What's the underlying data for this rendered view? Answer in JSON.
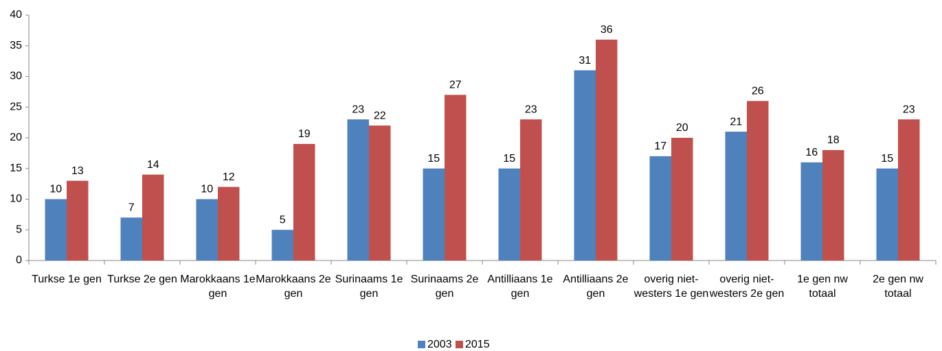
{
  "chart_data": {
    "type": "bar",
    "categories": [
      "Turkse 1e gen",
      "Turkse 2e gen",
      "Marokkaans 1e gen",
      "Marokkaans 2e gen",
      "Surinaams 1e gen",
      "Surinaams 2e gen",
      "Antilliaans 1e gen",
      "Antilliaans 2e gen",
      "overig niet-westers 1e gen",
      "overig niet-westers 2e gen",
      "1e gen nw totaal",
      "2e gen nw totaal"
    ],
    "series": [
      {
        "name": "2003",
        "color": "#4f81bd",
        "values": [
          10,
          7,
          10,
          5,
          23,
          15,
          15,
          31,
          17,
          21,
          16,
          15
        ]
      },
      {
        "name": "2015",
        "color": "#c0504d",
        "values": [
          13,
          14,
          12,
          19,
          22,
          27,
          23,
          36,
          20,
          26,
          18,
          23
        ]
      }
    ],
    "ylim": [
      0,
      40
    ],
    "yticks": [
      0,
      5,
      10,
      15,
      20,
      25,
      30,
      35,
      40
    ],
    "legend": "bottom",
    "grid": false
  }
}
